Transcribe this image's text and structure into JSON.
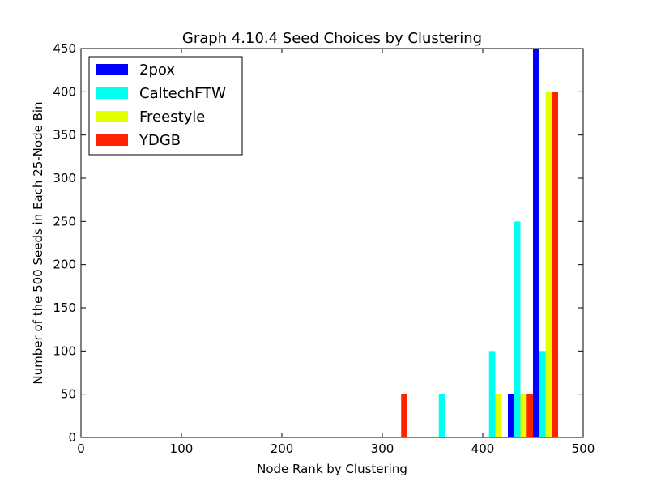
{
  "chart_data": {
    "type": "bar",
    "title": "Graph 4.10.4 Seed Choices by Clustering",
    "xlabel": "Node Rank by Clustering",
    "ylabel": "Number of the 500 Seeds in Each 25-Node Bin",
    "xlim": [
      0,
      500
    ],
    "ylim": [
      0,
      450
    ],
    "xticks": [
      "0",
      "100",
      "200",
      "300",
      "400",
      "500"
    ],
    "yticks": [
      "0",
      "50",
      "100",
      "150",
      "200",
      "250",
      "300",
      "350",
      "400",
      "450"
    ],
    "bin_width": 25,
    "legend_position": "top-left",
    "grid": false,
    "series": [
      {
        "name": "2pox",
        "color": "#0000ff",
        "bins": [
          425,
          450
        ],
        "values": [
          50,
          450
        ]
      },
      {
        "name": "CaltechFTW",
        "color": "#00ffee",
        "bins": [
          350,
          400,
          425,
          450
        ],
        "values": [
          50,
          100,
          250,
          100
        ]
      },
      {
        "name": "Freestyle",
        "color": "#e6ff00",
        "bins": [
          400,
          425,
          450
        ],
        "values": [
          50,
          50,
          400
        ]
      },
      {
        "name": "YDGB",
        "color": "#ff2200",
        "bins": [
          300,
          425,
          450
        ],
        "values": [
          50,
          50,
          400
        ]
      }
    ]
  }
}
